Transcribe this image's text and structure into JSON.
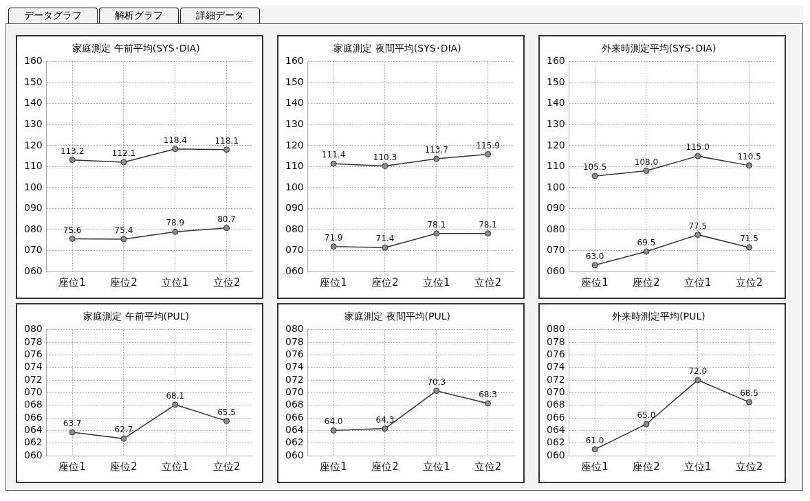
{
  "chart_data": [
    {
      "type": "other",
      "annotations": [
        "データグラフ",
        "解析グラフ",
        "詳細データ"
      ]
    },
    {
      "type": "line",
      "title": "家庭測定 午前平均(SYS･DIA)",
      "categories": [
        "座位1",
        "座位2",
        "立位1",
        "立位2"
      ],
      "ylim": [
        60,
        160
      ],
      "yticks": [
        {
          "value": 60,
          "label": "060"
        },
        {
          "value": 70,
          "label": "070"
        },
        {
          "value": 80,
          "label": "080"
        },
        {
          "value": 90,
          "label": "090"
        },
        100,
        110,
        120,
        130,
        140,
        150,
        160
      ],
      "grid": true,
      "marker": "circle",
      "series": [
        {
          "color": "#333333",
          "values": [
            113.2,
            112.1,
            118.4,
            118.1
          ],
          "value_labels": [
            "113.2",
            "112.1",
            "118.4",
            "118.1"
          ]
        },
        {
          "color": "#333333",
          "values": [
            75.6,
            75.4,
            78.9,
            80.7
          ],
          "value_labels": [
            "75.6",
            "75.4",
            "78.9",
            "80.7"
          ]
        }
      ]
    },
    {
      "type": "line",
      "title": "家庭測定 夜間平均(SYS･DIA)",
      "categories": [
        "座位1",
        "座位2",
        "立位1",
        "立位2"
      ],
      "ylim": [
        60,
        160
      ],
      "yticks": [
        {
          "value": 60,
          "label": "060"
        },
        {
          "value": 70,
          "label": "070"
        },
        {
          "value": 80,
          "label": "080"
        },
        {
          "value": 90,
          "label": "090"
        },
        100,
        110,
        120,
        130,
        140,
        150,
        160
      ],
      "grid": true,
      "marker": "circle",
      "series": [
        {
          "color": "#333333",
          "values": [
            111.4,
            110.3,
            113.7,
            115.9
          ],
          "value_labels": [
            "111.4",
            "110.3",
            "113.7",
            "115.9"
          ]
        },
        {
          "color": "#333333",
          "values": [
            71.9,
            71.4,
            78.1,
            78.1
          ],
          "value_labels": [
            "71.9",
            "71.4",
            "78.1",
            "78.1"
          ]
        }
      ]
    },
    {
      "type": "line",
      "title": "外来時測定平均(SYS･DIA)",
      "categories": [
        "座位1",
        "座位2",
        "立位1",
        "立位2"
      ],
      "ylim": [
        60,
        160
      ],
      "yticks": [
        {
          "value": 60,
          "label": "060"
        },
        {
          "value": 70,
          "label": "070"
        },
        {
          "value": 80,
          "label": "080"
        },
        {
          "value": 90,
          "label": "090"
        },
        100,
        110,
        120,
        130,
        140,
        150,
        160
      ],
      "grid": true,
      "marker": "circle",
      "series": [
        {
          "color": "#333333",
          "values": [
            105.5,
            108.0,
            115.0,
            110.5
          ],
          "value_labels": [
            "105.5",
            "108.0",
            "115.0",
            "110.5"
          ]
        },
        {
          "color": "#333333",
          "values": [
            63.0,
            69.5,
            77.5,
            71.5
          ],
          "value_labels": [
            "63.0",
            "69.5",
            "77.5",
            "71.5"
          ]
        }
      ]
    },
    {
      "type": "line",
      "title": "家庭測定 午前平均(PUL)",
      "categories": [
        "座位1",
        "座位2",
        "立位1",
        "立位2"
      ],
      "ylim": [
        60,
        80
      ],
      "yticks": [
        {
          "value": 60,
          "label": "060"
        },
        {
          "value": 62,
          "label": "062"
        },
        {
          "value": 64,
          "label": "064"
        },
        {
          "value": 66,
          "label": "066"
        },
        {
          "value": 68,
          "label": "068"
        },
        {
          "value": 70,
          "label": "070"
        },
        {
          "value": 72,
          "label": "072"
        },
        {
          "value": 74,
          "label": "074"
        },
        {
          "value": 76,
          "label": "076"
        },
        {
          "value": 78,
          "label": "078"
        },
        {
          "value": 80,
          "label": "080"
        }
      ],
      "grid": true,
      "marker": "circle",
      "series": [
        {
          "color": "#333333",
          "values": [
            63.7,
            62.7,
            68.1,
            65.5
          ],
          "value_labels": [
            "63.7",
            "62.7",
            "68.1",
            "65.5"
          ]
        }
      ]
    },
    {
      "type": "line",
      "title": "家庭測定 夜間平均(PUL)",
      "categories": [
        "座位1",
        "座位2",
        "立位1",
        "立位2"
      ],
      "ylim": [
        60,
        80
      ],
      "yticks": [
        {
          "value": 60,
          "label": "060"
        },
        {
          "value": 62,
          "label": "062"
        },
        {
          "value": 64,
          "label": "064"
        },
        {
          "value": 66,
          "label": "066"
        },
        {
          "value": 68,
          "label": "068"
        },
        {
          "value": 70,
          "label": "070"
        },
        {
          "value": 72,
          "label": "072"
        },
        {
          "value": 74,
          "label": "074"
        },
        {
          "value": 76,
          "label": "076"
        },
        {
          "value": 78,
          "label": "078"
        },
        {
          "value": 80,
          "label": "080"
        }
      ],
      "grid": true,
      "marker": "circle",
      "series": [
        {
          "color": "#333333",
          "values": [
            64.0,
            64.3,
            70.3,
            68.3
          ],
          "value_labels": [
            "64.0",
            "64.3",
            "70.3",
            "68.3"
          ]
        }
      ]
    },
    {
      "type": "line",
      "title": "外来時測定平均(PUL)",
      "categories": [
        "座位1",
        "座位2",
        "立位1",
        "立位2"
      ],
      "ylim": [
        60,
        80
      ],
      "yticks": [
        {
          "value": 60,
          "label": "060"
        },
        {
          "value": 62,
          "label": "062"
        },
        {
          "value": 64,
          "label": "064"
        },
        {
          "value": 66,
          "label": "066"
        },
        {
          "value": 68,
          "label": "068"
        },
        {
          "value": 70,
          "label": "070"
        },
        {
          "value": 72,
          "label": "072"
        },
        {
          "value": 74,
          "label": "074"
        },
        {
          "value": 76,
          "label": "076"
        },
        {
          "value": 78,
          "label": "078"
        },
        {
          "value": 80,
          "label": "080"
        }
      ],
      "grid": true,
      "marker": "circle",
      "series": [
        {
          "color": "#333333",
          "values": [
            61.0,
            65.0,
            72.0,
            68.5
          ],
          "value_labels": [
            "61.0",
            "65.0",
            "72.0",
            "68.5"
          ]
        }
      ]
    }
  ]
}
